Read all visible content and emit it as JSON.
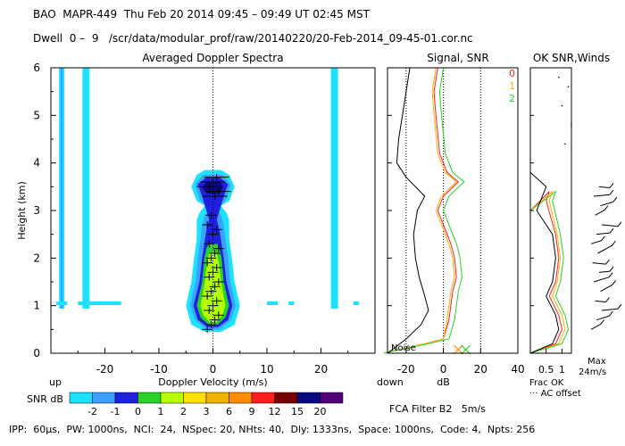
{
  "header": {
    "line1": "BAO  MAPR-449  Thu Feb 20 2014 09:45 – 09:49 UT 02:45 MST",
    "line2": "Dwell  0 –  9   /scr/data/modular_prof/raw/20140220/20-Feb-2014_09-45-01.cor.nc"
  },
  "footer": {
    "params": "IPP:  60μs,  PW: 1000ns,  NCI:  24,  NSpec: 20, NHts: 40,  Dly: 1333ns,  Space: 1000ns,  Code: 4,  Npts: 256",
    "fca": "FCA Filter B2   5m/s"
  },
  "colors": {
    "cyan": "#1ee1ff",
    "light_blue": "#3ca0ff",
    "blue": "#2020e0",
    "dark_blue": "#0a0a80",
    "green": "#28d228",
    "yellow_green": "#b4ff00",
    "yellow": "#ffe000",
    "gold": "#f0b400",
    "orange": "#ff8c00",
    "red": "#ff1e1e",
    "dark_red": "#780000",
    "purple": "#500078"
  },
  "chart_data": [
    {
      "type": "heatmap",
      "title": "Averaged Doppler Spectra",
      "xlabel": "Doppler Velocity (m/s)",
      "ylabel": "Height (km)",
      "xlim": [
        -30,
        30
      ],
      "ylim": [
        0,
        6
      ],
      "xticks": [
        -20,
        -10,
        0,
        10,
        20
      ],
      "yticks": [
        0,
        1,
        2,
        3,
        4,
        5,
        6
      ],
      "left_end_label": "up",
      "right_end_label": "down",
      "colorbar": {
        "label": "SNR dB",
        "ticks": [
          "-2",
          "-1",
          "0",
          "1",
          "2",
          "3",
          "6",
          "9",
          "12",
          "15",
          "20"
        ]
      },
      "interference_lines_velocity": [
        -28,
        -23.5,
        22.5
      ],
      "peak_marks_height_km": [
        0.5,
        0.6,
        0.7,
        0.8,
        0.9,
        1.0,
        1.1,
        1.2,
        1.3,
        1.4,
        1.5,
        1.6,
        1.7,
        1.8,
        1.9,
        2.0,
        2.1,
        2.2,
        2.3,
        2.5,
        2.6,
        2.7,
        2.9,
        3.3,
        3.4,
        3.5,
        3.6,
        3.7
      ]
    },
    {
      "type": "line",
      "title": "Signal, SNR",
      "xlabel": "dB",
      "xlim": [
        -30,
        40
      ],
      "xticks": [
        -20,
        0,
        20,
        40
      ],
      "ylim": [
        0,
        6
      ],
      "noise_label": "Noise",
      "series": [
        {
          "name": "0",
          "color": "#ff1e1e",
          "points": [
            [
              -32,
              0
            ],
            [
              -10,
              0.2
            ],
            [
              0,
              0.3
            ],
            [
              3,
              0.7
            ],
            [
              4,
              1
            ],
            [
              5,
              1.3
            ],
            [
              7,
              1.6
            ],
            [
              6,
              2
            ],
            [
              4,
              2.3
            ],
            [
              1,
              2.6
            ],
            [
              -3,
              3
            ],
            [
              0,
              3.3
            ],
            [
              8,
              3.6
            ],
            [
              2,
              3.8
            ],
            [
              -2,
              4.2
            ],
            [
              -4,
              5
            ],
            [
              -5,
              5.5
            ],
            [
              -3,
              6
            ]
          ]
        },
        {
          "name": "1",
          "color": "#ffb000",
          "points": [
            [
              -32,
              0
            ],
            [
              -10,
              0.2
            ],
            [
              0,
              0.3
            ],
            [
              2,
              0.7
            ],
            [
              3,
              1
            ],
            [
              4,
              1.3
            ],
            [
              6,
              1.6
            ],
            [
              5,
              2
            ],
            [
              3,
              2.3
            ],
            [
              0,
              2.6
            ],
            [
              -4,
              3
            ],
            [
              -1,
              3.3
            ],
            [
              7,
              3.6
            ],
            [
              1,
              3.8
            ],
            [
              -3,
              4.2
            ],
            [
              -5,
              5
            ],
            [
              -6,
              5.5
            ],
            [
              -4,
              6
            ]
          ]
        },
        {
          "name": "2",
          "color": "#28d228",
          "points": [
            [
              -32,
              0
            ],
            [
              -8,
              0.2
            ],
            [
              3,
              0.3
            ],
            [
              6,
              0.7
            ],
            [
              7,
              1
            ],
            [
              8,
              1.3
            ],
            [
              10,
              1.6
            ],
            [
              9,
              2
            ],
            [
              7,
              2.3
            ],
            [
              4,
              2.6
            ],
            [
              0,
              3
            ],
            [
              3,
              3.3
            ],
            [
              11,
              3.6
            ],
            [
              5,
              3.8
            ],
            [
              1,
              4.2
            ],
            [
              -1,
              5
            ],
            [
              -2,
              5.5
            ],
            [
              0,
              6
            ]
          ]
        },
        {
          "name": "Noise",
          "color": "#000000",
          "points": [
            [
              -30,
              0
            ],
            [
              -20,
              0.3
            ],
            [
              -12,
              0.6
            ],
            [
              -8,
              0.9
            ],
            [
              -10,
              1.2
            ],
            [
              -13,
              1.6
            ],
            [
              -15,
              2
            ],
            [
              -16,
              2.5
            ],
            [
              -14,
              3
            ],
            [
              -10,
              3.3
            ],
            [
              -20,
              3.7
            ],
            [
              -25,
              4
            ],
            [
              -24,
              4.5
            ],
            [
              -22,
              5
            ],
            [
              -20,
              5.5
            ],
            [
              -18,
              6
            ]
          ]
        }
      ]
    },
    {
      "type": "line",
      "title": "OK SNR,Winds",
      "xlabel": "Frac OK",
      "xticks": [
        "0.5",
        "1"
      ],
      "xlim": [
        0,
        1.3
      ],
      "ylim": [
        0,
        6
      ],
      "ac_offset_label": "··· AC offset",
      "series": [
        {
          "name": "0",
          "color": "#ff1e1e",
          "points": [
            [
              0,
              0
            ],
            [
              0,
              3
            ],
            [
              0.6,
              3.4
            ],
            [
              0.5,
              3.2
            ],
            [
              0.8,
              2.5
            ],
            [
              0.9,
              2
            ],
            [
              0.8,
              1.5
            ],
            [
              0.6,
              1.2
            ],
            [
              0.9,
              0.8
            ],
            [
              1,
              0.5
            ],
            [
              0.8,
              0.2
            ],
            [
              0,
              0
            ]
          ]
        },
        {
          "name": "1",
          "color": "#ffb000",
          "points": [
            [
              0,
              0
            ],
            [
              0,
              3
            ],
            [
              0.7,
              3.4
            ],
            [
              0.6,
              3.2
            ],
            [
              0.85,
              2.5
            ],
            [
              0.95,
              2
            ],
            [
              0.85,
              1.5
            ],
            [
              0.7,
              1.2
            ],
            [
              1,
              0.8
            ],
            [
              1.1,
              0.5
            ],
            [
              0.9,
              0.2
            ],
            [
              0,
              0
            ]
          ]
        },
        {
          "name": "2",
          "color": "#28d228",
          "points": [
            [
              0,
              0
            ],
            [
              0,
              3
            ],
            [
              0.8,
              3.4
            ],
            [
              0.7,
              3.2
            ],
            [
              0.95,
              2.5
            ],
            [
              1.05,
              2
            ],
            [
              0.95,
              1.5
            ],
            [
              0.8,
              1.2
            ],
            [
              1.1,
              0.8
            ],
            [
              1.2,
              0.5
            ],
            [
              1,
              0.2
            ],
            [
              0,
              0
            ]
          ]
        },
        {
          "name": "frac",
          "color": "#000000",
          "points": [
            [
              0,
              0
            ],
            [
              0,
              3.8
            ],
            [
              0.5,
              3.5
            ],
            [
              0.2,
              3.0
            ],
            [
              0.7,
              2.5
            ],
            [
              0.8,
              2
            ],
            [
              0.7,
              1.5
            ],
            [
              0.5,
              1.2
            ],
            [
              0.8,
              0.8
            ],
            [
              0.9,
              0.5
            ],
            [
              0.7,
              0.2
            ],
            [
              0,
              0
            ]
          ]
        }
      ],
      "winds": {
        "max_label": "Max",
        "max_value": "24m/s",
        "barb_heights_km": [
          0.5,
          0.7,
          0.9,
          1.1,
          1.3,
          1.5,
          1.7,
          1.9,
          2.1,
          2.3,
          2.5,
          2.7,
          2.9,
          3.1,
          3.3,
          3.5
        ]
      }
    }
  ]
}
